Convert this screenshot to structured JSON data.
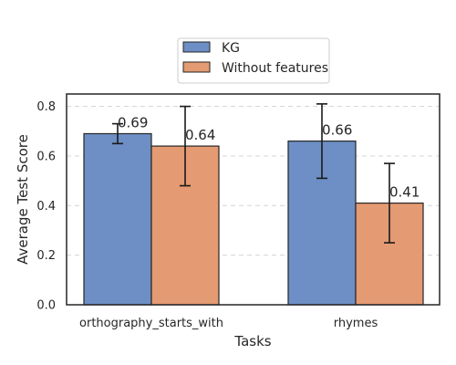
{
  "chart_data": {
    "type": "bar",
    "xlabel": "Tasks",
    "ylabel": "Average Test Score",
    "categories": [
      "orthography_starts_with",
      "rhymes"
    ],
    "series": [
      {
        "name": "KG",
        "color": "#6d8fc5",
        "values": [
          0.69,
          0.66
        ],
        "error_low": [
          0.65,
          0.51
        ],
        "error_high": [
          0.73,
          0.81
        ],
        "labels": [
          "0.69",
          "0.66"
        ]
      },
      {
        "name": "Without features",
        "color": "#e49a72",
        "values": [
          0.64,
          0.41
        ],
        "error_low": [
          0.48,
          0.25
        ],
        "error_high": [
          0.8,
          0.57
        ],
        "labels": [
          "0.64",
          "0.41"
        ]
      }
    ],
    "ylim": [
      0,
      0.85
    ],
    "yticks": [
      "0.0",
      "0.2",
      "0.4",
      "0.6",
      "0.8"
    ],
    "ytick_values": [
      0,
      0.2,
      0.4,
      0.6,
      0.8
    ],
    "grid": "y-dashed",
    "legend_position": "top-center"
  }
}
